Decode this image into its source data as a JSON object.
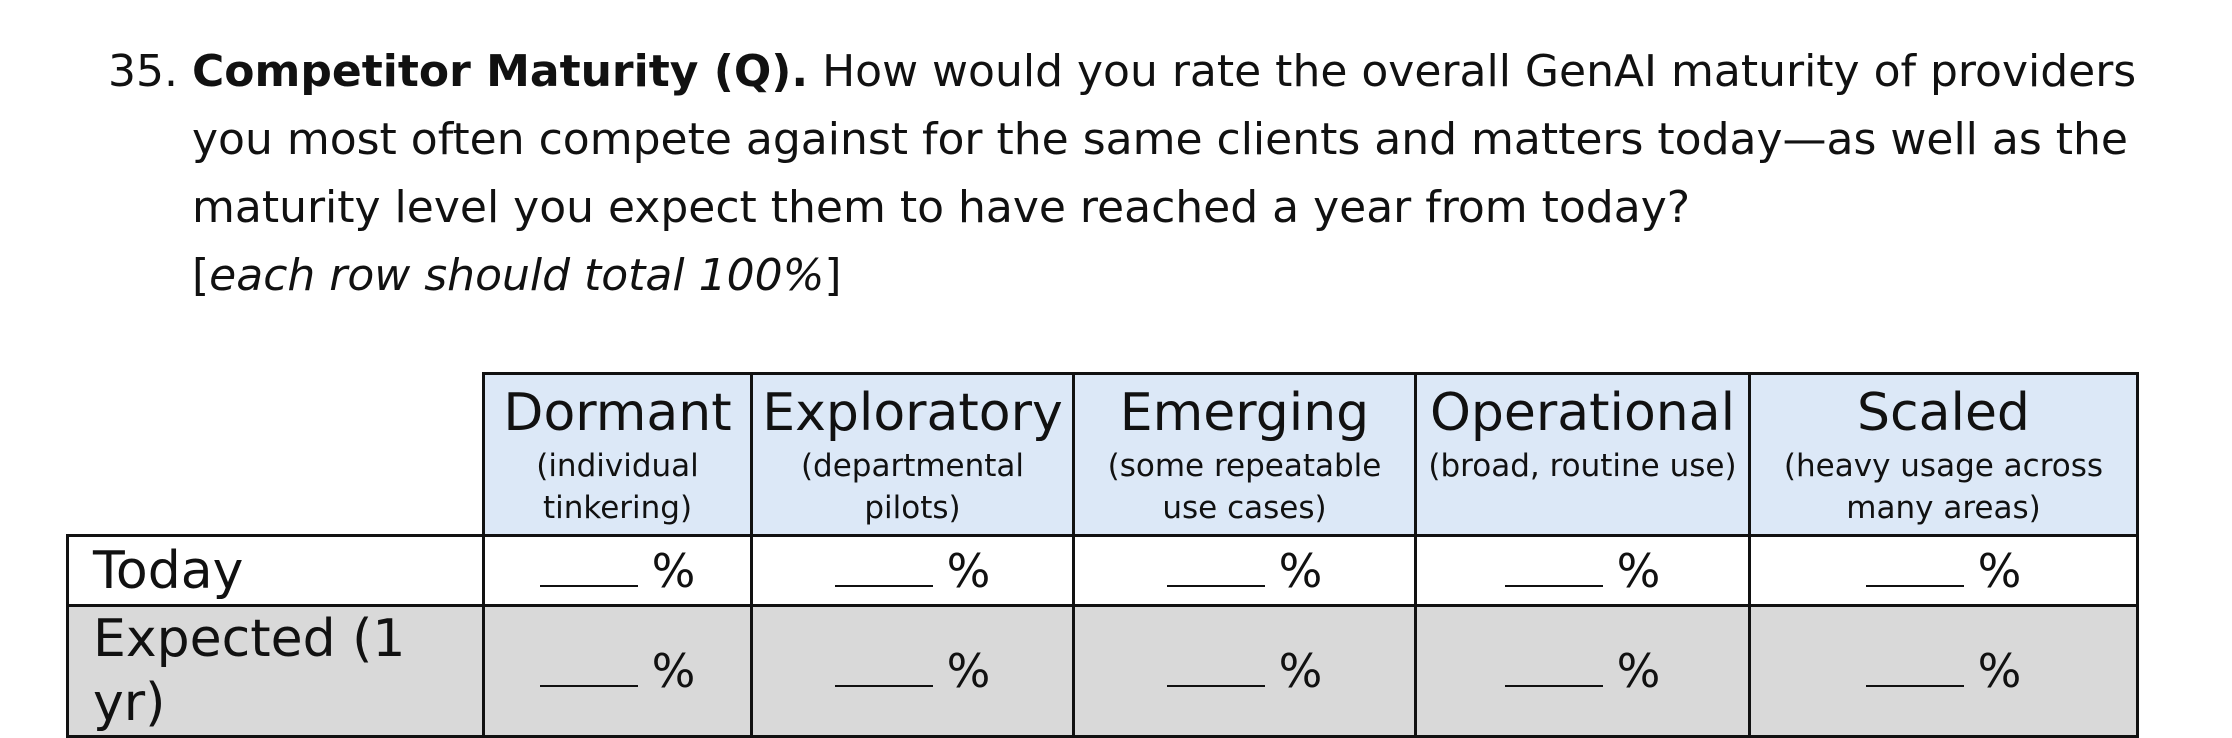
{
  "question": {
    "number": "35.",
    "title": "Competitor Maturity (Q).",
    "text": " How would you rate the overall GenAI maturity of providers you most often compete against for the same clients and matters today—as well as the maturity level you expect them to have reached a year from today?",
    "instruction_open": "[",
    "instruction": "each row should total 100%",
    "instruction_close": "]"
  },
  "table": {
    "columns": [
      {
        "name": "Dormant",
        "desc": "(individual tinkering)"
      },
      {
        "name": "Exploratory",
        "desc": "(departmental pilots)"
      },
      {
        "name": "Emerging",
        "desc": "(some repeatable use cases)"
      },
      {
        "name": "Operational",
        "desc": "(broad, routine use)"
      },
      {
        "name": "Scaled",
        "desc": "(heavy usage across many areas)"
      }
    ],
    "rows": [
      {
        "label": "Today",
        "cells": [
          "%",
          "%",
          "%",
          "%",
          "%"
        ]
      },
      {
        "label": "Expected (1 yr)",
        "cells": [
          "%",
          "%",
          "%",
          "%",
          "%"
        ]
      }
    ]
  },
  "colors": {
    "header_fill": "#dce8f7",
    "alt_row_fill": "#d9d9d9",
    "border": "#111111"
  }
}
